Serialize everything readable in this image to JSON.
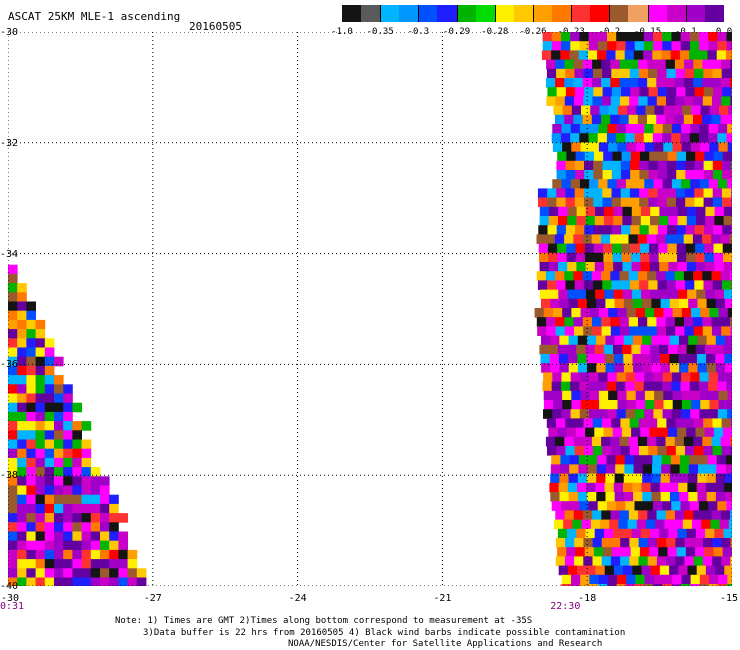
{
  "header": {
    "title": "ASCAT 25KM MLE-1 ascending",
    "date": "20160505"
  },
  "colorbar": {
    "colors": [
      "#141414",
      "#5a5a5a",
      "#00b4ff",
      "#0096ff",
      "#0050ff",
      "#1e1eff",
      "#00b400",
      "#00dc00",
      "#fff000",
      "#ffc800",
      "#ffa000",
      "#ff7800",
      "#ff3232",
      "#ff0000",
      "#9b5a2d",
      "#f0a060",
      "#ff00ff",
      "#c800c8",
      "#a000c8",
      "#6400a0"
    ],
    "labels": [
      "-1.0",
      "-0.35",
      "-0.3",
      "-0.29",
      "-0.28",
      "-0.26",
      "-0.23",
      "-0.2",
      "-0.15",
      "-0.1",
      "0.0"
    ]
  },
  "map": {
    "x_ticks": [
      "-30",
      "-27",
      "-24",
      "-21",
      "-18",
      "-15"
    ],
    "y_ticks": [
      "-30",
      "-32",
      "-34",
      "-36",
      "-38",
      "-40"
    ],
    "lon_range": [
      -30,
      -15
    ],
    "lat_range": [
      -40,
      -30
    ],
    "time_labels": [
      {
        "text": "0:31",
        "lon": -30
      },
      {
        "text": "22:30",
        "lon": -18.6
      }
    ]
  },
  "footer": {
    "line1": "Note: 1) Times are GMT 2)Times along bottom correspond to measurement at -35S",
    "line2": "3)Data buffer is 22 hrs from 20160505 4) Black wind barbs indicate possible contamination",
    "line3": "NOAA/NESDIS/Center for Satellite Applications and Research"
  }
}
